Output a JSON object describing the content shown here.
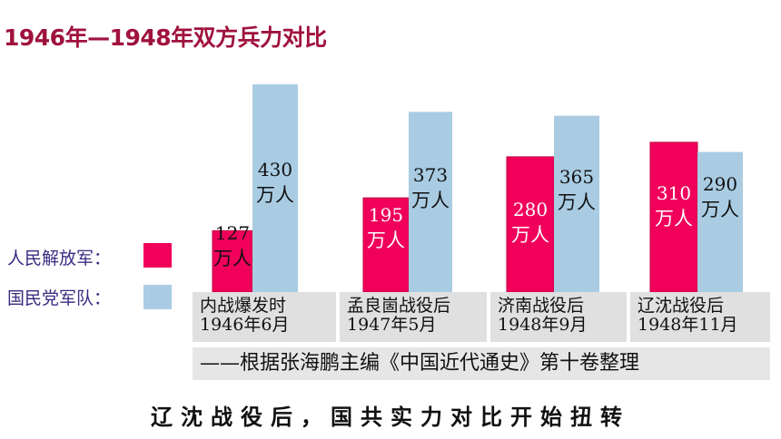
{
  "chart_data": {
    "type": "bar",
    "title": "1946年—1948年双方兵力对比",
    "categories": [
      {
        "line1": "内战爆发时",
        "line2": "1946年6月"
      },
      {
        "line1": "孟良崮战役后",
        "line2": "1947年5月"
      },
      {
        "line1": "济南战役后",
        "line2": "1948年9月"
      },
      {
        "line1": "辽沈战役后",
        "line2": "1948年11月"
      }
    ],
    "unit": "万人",
    "series": [
      {
        "name": "人民解放军：",
        "color": "#f0005a",
        "values": [
          127,
          195,
          280,
          310
        ]
      },
      {
        "name": "国民党军队：",
        "color": "#a9cce3",
        "values": [
          430,
          373,
          365,
          290
        ]
      }
    ],
    "ylim": [
      0,
      430
    ]
  },
  "source": "——根据张海鹏主编《中国近代通史》第十卷整理",
  "conclusion": "辽沈战役后，国共实力对比开始扭转"
}
